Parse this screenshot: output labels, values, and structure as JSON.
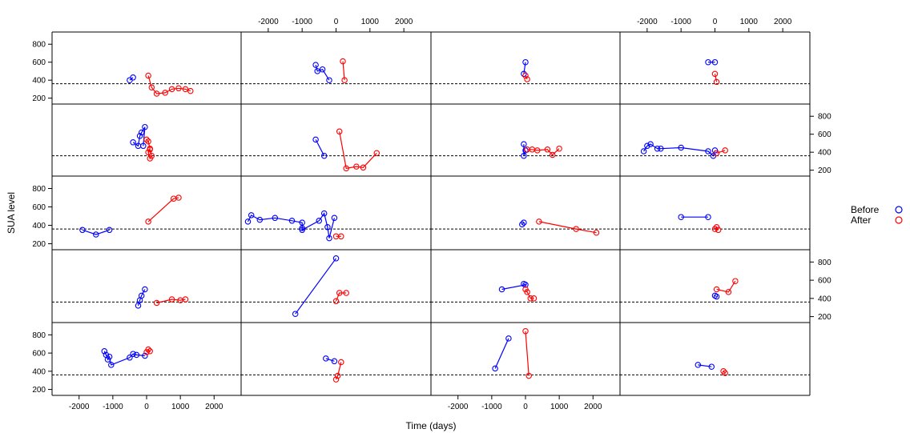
{
  "chart_data": {
    "type": "scatter",
    "subtype": "trellis-line-plot",
    "xlabel": "Time (days)",
    "ylabel": "SUA level",
    "xlim": [
      -2800,
      2800
    ],
    "ylim": [
      170,
      900
    ],
    "x_ticks": [
      -2000,
      -1000,
      0,
      1000,
      2000
    ],
    "y_ticks": [
      200,
      400,
      600,
      800
    ],
    "reference_line": 360,
    "layout": {
      "rows": 5,
      "cols": 4
    },
    "legend": {
      "placement": "right",
      "entries": [
        {
          "label": "Before",
          "color": "#0000ff"
        },
        {
          "label": "After",
          "color": "#ff0000"
        }
      ]
    },
    "panels": [
      {
        "before": [
          [
            -500,
            400
          ],
          [
            -400,
            430
          ]
        ],
        "after": [
          [
            50,
            450
          ],
          [
            150,
            320
          ],
          [
            300,
            250
          ],
          [
            550,
            260
          ],
          [
            750,
            300
          ],
          [
            950,
            310
          ],
          [
            1150,
            300
          ],
          [
            1300,
            280
          ]
        ]
      },
      {
        "before": [
          [
            -600,
            570
          ],
          [
            -550,
            500
          ],
          [
            -400,
            520
          ],
          [
            -200,
            400
          ]
        ],
        "after": [
          [
            200,
            610
          ],
          [
            250,
            400
          ]
        ]
      },
      {
        "before": [
          [
            0,
            600
          ],
          [
            -50,
            470
          ]
        ],
        "after": [
          [
            0,
            450
          ],
          [
            50,
            410
          ]
        ]
      },
      {
        "before": [
          [
            -200,
            600
          ],
          [
            0,
            600
          ]
        ],
        "after": [
          [
            0,
            470
          ],
          [
            50,
            380
          ]
        ]
      },
      {
        "before": [
          [
            -400,
            510
          ],
          [
            -250,
            470
          ],
          [
            -200,
            580
          ],
          [
            -150,
            620
          ],
          [
            -50,
            680
          ],
          [
            -100,
            470
          ]
        ],
        "after": [
          [
            0,
            540
          ],
          [
            50,
            520
          ],
          [
            100,
            440
          ],
          [
            50,
            400
          ],
          [
            100,
            330
          ],
          [
            150,
            360
          ],
          [
            100,
            430
          ]
        ]
      },
      {
        "before": [
          [
            -600,
            540
          ],
          [
            -350,
            360
          ]
        ],
        "after": [
          [
            100,
            630
          ],
          [
            300,
            220
          ],
          [
            600,
            240
          ],
          [
            800,
            230
          ],
          [
            1200,
            390
          ]
        ]
      },
      {
        "before": [
          [
            -50,
            490
          ],
          [
            -50,
            360
          ],
          [
            0,
            420
          ]
        ],
        "after": [
          [
            50,
            430
          ],
          [
            200,
            430
          ],
          [
            350,
            420
          ],
          [
            650,
            430
          ],
          [
            800,
            370
          ],
          [
            1000,
            440
          ]
        ]
      },
      {
        "before": [
          [
            -2100,
            410
          ],
          [
            -2000,
            470
          ],
          [
            -1900,
            490
          ],
          [
            -1700,
            440
          ],
          [
            -1600,
            440
          ],
          [
            -1000,
            450
          ],
          [
            -200,
            410
          ],
          [
            -50,
            360
          ],
          [
            0,
            420
          ]
        ],
        "after": [
          [
            50,
            390
          ],
          [
            300,
            420
          ]
        ]
      },
      {
        "before": [
          [
            -1900,
            350
          ],
          [
            -1500,
            300
          ],
          [
            -1100,
            350
          ]
        ],
        "after": [
          [
            50,
            440
          ],
          [
            800,
            690
          ],
          [
            950,
            700
          ]
        ]
      },
      {
        "before": [
          [
            -2600,
            440
          ],
          [
            -2500,
            510
          ],
          [
            -2250,
            460
          ],
          [
            -1800,
            480
          ],
          [
            -1300,
            450
          ],
          [
            -1000,
            430
          ],
          [
            -1000,
            370
          ],
          [
            -1000,
            350
          ],
          [
            -500,
            450
          ],
          [
            -350,
            530
          ],
          [
            -250,
            380
          ],
          [
            -200,
            260
          ],
          [
            -50,
            480
          ]
        ],
        "after": [
          [
            0,
            280
          ],
          [
            150,
            280
          ]
        ]
      },
      {
        "before": [
          [
            -100,
            410
          ],
          [
            -50,
            430
          ]
        ],
        "after": [
          [
            400,
            440
          ],
          [
            1500,
            360
          ],
          [
            2100,
            320
          ]
        ]
      },
      {
        "before": [
          [
            -1000,
            490
          ],
          [
            -200,
            490
          ]
        ],
        "after": [
          [
            0,
            360
          ],
          [
            50,
            380
          ],
          [
            100,
            350
          ]
        ]
      },
      {
        "before": [
          [
            -250,
            320
          ],
          [
            -200,
            380
          ],
          [
            -150,
            430
          ],
          [
            -50,
            500
          ]
        ],
        "after": [
          [
            300,
            350
          ],
          [
            750,
            390
          ],
          [
            1000,
            380
          ],
          [
            1150,
            390
          ]
        ]
      },
      {
        "before": [
          [
            -1200,
            230
          ],
          [
            0,
            840
          ]
        ],
        "after": [
          [
            0,
            370
          ],
          [
            100,
            460
          ],
          [
            300,
            460
          ]
        ]
      },
      {
        "before": [
          [
            -700,
            500
          ],
          [
            0,
            550
          ],
          [
            -50,
            560
          ]
        ],
        "after": [
          [
            0,
            500
          ],
          [
            50,
            470
          ],
          [
            150,
            400
          ],
          [
            250,
            400
          ]
        ]
      },
      {
        "before": [
          [
            0,
            430
          ],
          [
            50,
            420
          ]
        ],
        "after": [
          [
            50,
            500
          ],
          [
            400,
            470
          ],
          [
            600,
            590
          ]
        ]
      },
      {
        "before": [
          [
            -1250,
            620
          ],
          [
            -1200,
            580
          ],
          [
            -1150,
            530
          ],
          [
            -1100,
            560
          ],
          [
            -1050,
            470
          ],
          [
            -500,
            550
          ],
          [
            -400,
            590
          ],
          [
            -300,
            580
          ],
          [
            -50,
            570
          ]
        ],
        "after": [
          [
            0,
            610
          ],
          [
            50,
            640
          ],
          [
            100,
            620
          ]
        ]
      },
      {
        "before": [
          [
            -300,
            540
          ],
          [
            -50,
            510
          ]
        ],
        "after": [
          [
            0,
            310
          ],
          [
            50,
            350
          ],
          [
            150,
            500
          ]
        ]
      },
      {
        "before": [
          [
            -900,
            430
          ],
          [
            -500,
            760
          ]
        ],
        "after": [
          [
            0,
            840
          ],
          [
            100,
            350
          ]
        ]
      },
      {
        "before": [
          [
            -500,
            470
          ],
          [
            -100,
            450
          ]
        ],
        "after": [
          [
            250,
            400
          ],
          [
            300,
            380
          ]
        ]
      }
    ]
  }
}
